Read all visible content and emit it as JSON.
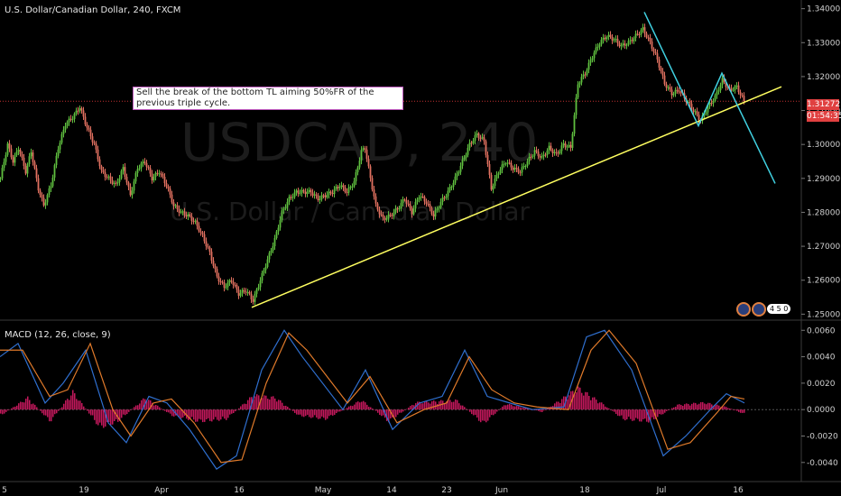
{
  "header": {
    "title": "U.S. Dollar/Canadian Dollar, 240, FXCM",
    "macd_label": "MACD (12, 26, close, 9)"
  },
  "annotation": {
    "text": "Sell the break of the bottom TL aiming 50%FR of the previous triple cycle."
  },
  "watermark": {
    "symbol": "USDCAD, 240",
    "name": "U.S. Dollar / Canadian Dollar"
  },
  "price_tags": {
    "last_price": "1.31272",
    "countdown": "01:54:35"
  },
  "badges": {
    "count": "4 5 0"
  },
  "colors": {
    "background": "#000000",
    "up_candle": "#5fbf3f",
    "down_candle": "#e07060",
    "trendline": "#ffff60",
    "projection": "#40d0e0",
    "macd_line": "#2f6fcf",
    "signal_line": "#e07a2a",
    "histogram": "#c2185b",
    "price_tag": "#e04040"
  },
  "chart_data": [
    {
      "type": "candlestick",
      "title": "U.S. Dollar/Canadian Dollar, 240, FXCM",
      "x_tick_labels": [
        "5",
        "19",
        "Apr",
        "16",
        "May",
        "14",
        "23",
        "Jun",
        "18",
        "Jul",
        "16"
      ],
      "y_tick_labels": [
        "1.34000",
        "1.33000",
        "1.32000",
        "1.31000",
        "1.30000",
        "1.29000",
        "1.28000",
        "1.27000",
        "1.26000",
        "1.25000"
      ],
      "ylim": [
        1.2485,
        1.3415
      ],
      "price_path": [
        [
          0,
          1.29
        ],
        [
          8,
          1.3
        ],
        [
          14,
          1.295
        ],
        [
          20,
          1.299
        ],
        [
          28,
          1.292
        ],
        [
          34,
          1.298
        ],
        [
          42,
          1.287
        ],
        [
          48,
          1.282
        ],
        [
          56,
          1.288
        ],
        [
          64,
          1.299
        ],
        [
          72,
          1.306
        ],
        [
          80,
          1.308
        ],
        [
          88,
          1.311
        ],
        [
          96,
          1.305
        ],
        [
          104,
          1.3
        ],
        [
          112,
          1.292
        ],
        [
          120,
          1.29
        ],
        [
          128,
          1.288
        ],
        [
          136,
          1.293
        ],
        [
          144,
          1.285
        ],
        [
          152,
          1.293
        ],
        [
          160,
          1.295
        ],
        [
          168,
          1.29
        ],
        [
          176,
          1.292
        ],
        [
          184,
          1.288
        ],
        [
          192,
          1.282
        ],
        [
          200,
          1.28
        ],
        [
          208,
          1.279
        ],
        [
          216,
          1.277
        ],
        [
          224,
          1.273
        ],
        [
          232,
          1.268
        ],
        [
          240,
          1.261
        ],
        [
          248,
          1.258
        ],
        [
          256,
          1.26
        ],
        [
          264,
          1.256
        ],
        [
          272,
          1.257
        ],
        [
          280,
          1.254
        ],
        [
          288,
          1.26
        ],
        [
          296,
          1.266
        ],
        [
          304,
          1.272
        ],
        [
          312,
          1.28
        ],
        [
          320,
          1.284
        ],
        [
          328,
          1.286
        ],
        [
          336,
          1.286
        ],
        [
          344,
          1.286
        ],
        [
          352,
          1.284
        ],
        [
          360,
          1.285
        ],
        [
          368,
          1.286
        ],
        [
          376,
          1.288
        ],
        [
          384,
          1.286
        ],
        [
          392,
          1.289
        ],
        [
          400,
          1.298
        ],
        [
          404,
          1.299
        ],
        [
          410,
          1.29
        ],
        [
          416,
          1.282
        ],
        [
          424,
          1.278
        ],
        [
          432,
          1.279
        ],
        [
          440,
          1.281
        ],
        [
          448,
          1.284
        ],
        [
          456,
          1.28
        ],
        [
          464,
          1.285
        ],
        [
          472,
          1.283
        ],
        [
          480,
          1.279
        ],
        [
          488,
          1.283
        ],
        [
          496,
          1.286
        ],
        [
          504,
          1.29
        ],
        [
          512,
          1.295
        ],
        [
          520,
          1.3
        ],
        [
          528,
          1.303
        ],
        [
          536,
          1.301
        ],
        [
          544,
          1.287
        ],
        [
          552,
          1.292
        ],
        [
          560,
          1.295
        ],
        [
          568,
          1.293
        ],
        [
          576,
          1.292
        ],
        [
          584,
          1.295
        ],
        [
          592,
          1.298
        ],
        [
          600,
          1.296
        ],
        [
          608,
          1.299
        ],
        [
          616,
          1.297
        ],
        [
          624,
          1.3
        ],
        [
          632,
          1.299
        ],
        [
          640,
          1.318
        ],
        [
          648,
          1.321
        ],
        [
          656,
          1.326
        ],
        [
          664,
          1.33
        ],
        [
          672,
          1.332
        ],
        [
          680,
          1.331
        ],
        [
          688,
          1.329
        ],
        [
          696,
          1.33
        ],
        [
          704,
          1.332
        ],
        [
          712,
          1.334
        ],
        [
          720,
          1.33
        ],
        [
          728,
          1.325
        ],
        [
          736,
          1.318
        ],
        [
          744,
          1.315
        ],
        [
          752,
          1.316
        ],
        [
          760,
          1.313
        ],
        [
          768,
          1.31
        ],
        [
          776,
          1.307
        ],
        [
          784,
          1.311
        ],
        [
          792,
          1.314
        ],
        [
          800,
          1.319
        ],
        [
          808,
          1.316
        ],
        [
          816,
          1.317
        ],
        [
          824,
          1.3127
        ]
      ],
      "annotation": "Sell the break of the bottom TL aiming 50%FR of the previous triple cycle.",
      "last_price": 1.31272
    },
    {
      "type": "line",
      "title": "MACD (12, 26, close, 9)",
      "y_tick_labels": [
        "0.0060",
        "0.0040",
        "0.0020",
        "0.0000",
        "-0.0020",
        "-0.0040"
      ],
      "ylim": [
        -0.0049,
        0.0067
      ],
      "series": [
        {
          "values": [
            [
              0,
              0.004
            ],
            [
              20,
              0.005
            ],
            [
              50,
              0.0005
            ],
            [
              70,
              0.002
            ],
            [
              95,
              0.0045
            ],
            [
              120,
              -0.001
            ],
            [
              140,
              -0.0025
            ],
            [
              165,
              0.001
            ],
            [
              185,
              0.0005
            ],
            [
              210,
              -0.0015
            ],
            [
              240,
              -0.0045
            ],
            [
              262,
              -0.0035
            ],
            [
              290,
              0.003
            ],
            [
              315,
              0.006
            ],
            [
              335,
              0.004
            ],
            [
              380,
              0.0
            ],
            [
              405,
              0.003
            ],
            [
              435,
              -0.0015
            ],
            [
              465,
              0.0005
            ],
            [
              490,
              0.001
            ],
            [
              515,
              0.0045
            ],
            [
              540,
              0.001
            ],
            [
              565,
              0.0005
            ],
            [
              590,
              0.0
            ],
            [
              625,
              0.0002
            ],
            [
              650,
              0.0055
            ],
            [
              670,
              0.006
            ],
            [
              700,
              0.003
            ],
            [
              735,
              -0.0035
            ],
            [
              760,
              -0.002
            ],
            [
              790,
              0.0002
            ],
            [
              805,
              0.0012
            ],
            [
              825,
              0.0005
            ]
          ]
        },
        {
          "values": [
            [
              0,
              0.0045
            ],
            [
              25,
              0.0045
            ],
            [
              55,
              0.001
            ],
            [
              75,
              0.0015
            ],
            [
              100,
              0.005
            ],
            [
              125,
              0.0
            ],
            [
              145,
              -0.002
            ],
            [
              170,
              0.0005
            ],
            [
              190,
              0.0008
            ],
            [
              215,
              -0.001
            ],
            [
              245,
              -0.004
            ],
            [
              268,
              -0.0038
            ],
            [
              295,
              0.002
            ],
            [
              320,
              0.0058
            ],
            [
              340,
              0.0045
            ],
            [
              385,
              0.0005
            ],
            [
              410,
              0.0025
            ],
            [
              440,
              -0.001
            ],
            [
              470,
              0.0
            ],
            [
              495,
              0.0005
            ],
            [
              520,
              0.004
            ],
            [
              545,
              0.0015
            ],
            [
              570,
              0.0005
            ],
            [
              595,
              0.0002
            ],
            [
              630,
              0.0
            ],
            [
              655,
              0.0045
            ],
            [
              675,
              0.006
            ],
            [
              705,
              0.0035
            ],
            [
              740,
              -0.003
            ],
            [
              765,
              -0.0025
            ],
            [
              795,
              -0.0002
            ],
            [
              810,
              0.001
            ],
            [
              825,
              0.0008
            ]
          ]
        }
      ],
      "histogram": [
        [
          0,
          -0.0005
        ],
        [
          30,
          0.001
        ],
        [
          55,
          -0.001
        ],
        [
          80,
          0.0015
        ],
        [
          110,
          -0.0015
        ],
        [
          130,
          -0.001
        ],
        [
          160,
          0.001
        ],
        [
          190,
          -0.0005
        ],
        [
          220,
          -0.001
        ],
        [
          250,
          -0.0008
        ],
        [
          280,
          0.0012
        ],
        [
          305,
          0.001
        ],
        [
          330,
          -0.0005
        ],
        [
          360,
          -0.0008
        ],
        [
          400,
          0.0008
        ],
        [
          430,
          -0.001
        ],
        [
          460,
          0.0006
        ],
        [
          505,
          0.0008
        ],
        [
          535,
          -0.0012
        ],
        [
          560,
          0.0005
        ],
        [
          600,
          -0.0002
        ],
        [
          640,
          0.0018
        ],
        [
          665,
          0.0006
        ],
        [
          690,
          -0.0008
        ],
        [
          720,
          -0.001
        ],
        [
          750,
          0.0004
        ],
        [
          780,
          0.0006
        ],
        [
          805,
          0.0002
        ],
        [
          825,
          -0.0004
        ]
      ]
    }
  ]
}
